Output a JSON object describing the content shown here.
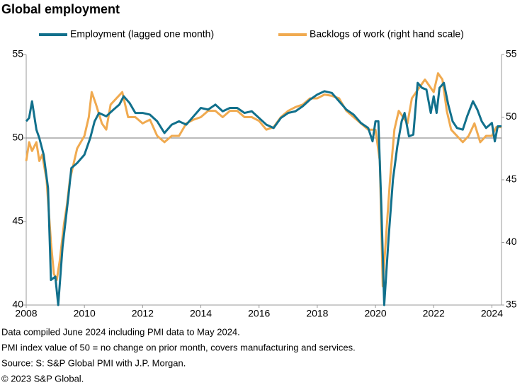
{
  "chart_data": {
    "type": "line",
    "title": "Global employment",
    "xlim": [
      2008,
      2024.33
    ],
    "xticks": [
      2008,
      2010,
      2012,
      2014,
      2016,
      2018,
      2020,
      2022,
      2024
    ],
    "ylim": [
      40,
      55
    ],
    "yticks": [
      40,
      45,
      50,
      55
    ],
    "y2lim": [
      35,
      55
    ],
    "y2ticks": [
      35,
      40,
      45,
      50,
      55
    ],
    "hline": 50,
    "series": [
      {
        "name": "Employment (lagged one month)",
        "color": "#11708c",
        "x": [
          2008.0,
          2008.1,
          2008.2,
          2008.35,
          2008.45,
          2008.6,
          2008.75,
          2008.85,
          2009.0,
          2009.1,
          2009.25,
          2009.45,
          2009.55,
          2009.75,
          2010.0,
          2010.2,
          2010.35,
          2010.5,
          2010.75,
          2011.0,
          2011.2,
          2011.35,
          2011.55,
          2011.75,
          2012.0,
          2012.25,
          2012.5,
          2012.75,
          2013.0,
          2013.25,
          2013.5,
          2013.75,
          2014.0,
          2014.25,
          2014.5,
          2014.75,
          2015.0,
          2015.25,
          2015.5,
          2015.75,
          2016.0,
          2016.25,
          2016.5,
          2016.75,
          2017.0,
          2017.25,
          2017.5,
          2017.75,
          2018.0,
          2018.25,
          2018.5,
          2018.75,
          2019.0,
          2019.25,
          2019.5,
          2019.75,
          2019.9,
          2020.0,
          2020.1,
          2020.2,
          2020.3,
          2020.45,
          2020.6,
          2020.75,
          2020.9,
          2021.0,
          2021.15,
          2021.3,
          2021.45,
          2021.6,
          2021.75,
          2021.9,
          2022.0,
          2022.1,
          2022.2,
          2022.35,
          2022.5,
          2022.65,
          2022.8,
          2023.0,
          2023.15,
          2023.35,
          2023.5,
          2023.65,
          2023.8,
          2024.0,
          2024.1,
          2024.2,
          2024.33
        ],
        "values": [
          51.0,
          51.2,
          52.2,
          50.5,
          50.0,
          49.0,
          47.0,
          41.5,
          41.7,
          40.0,
          43.5,
          46.5,
          48.2,
          48.5,
          49.0,
          50.0,
          51.0,
          51.5,
          51.3,
          51.7,
          52.0,
          52.5,
          52.1,
          51.5,
          51.5,
          51.4,
          51.0,
          50.3,
          50.8,
          51.0,
          50.8,
          51.3,
          51.8,
          51.7,
          52.0,
          51.6,
          51.8,
          51.8,
          51.5,
          51.6,
          51.2,
          50.8,
          50.6,
          51.2,
          51.5,
          51.6,
          51.9,
          52.3,
          52.6,
          52.8,
          52.7,
          52.2,
          51.7,
          51.4,
          50.9,
          50.6,
          49.8,
          51.0,
          51.0,
          46.0,
          40.0,
          44.0,
          47.5,
          49.5,
          51.0,
          51.5,
          50.1,
          50.2,
          53.3,
          53.0,
          52.9,
          51.5,
          52.5,
          51.5,
          53.0,
          53.3,
          52.0,
          51.0,
          50.6,
          50.5,
          51.3,
          52.2,
          51.7,
          51.0,
          50.6,
          50.9,
          49.8,
          50.7,
          50.7
        ]
      },
      {
        "name": "Backlogs of work (right hand scale)",
        "color": "#f0aa50",
        "axis": "y2",
        "x": [
          2008.0,
          2008.1,
          2008.2,
          2008.35,
          2008.45,
          2008.55,
          2008.7,
          2008.85,
          2008.95,
          2009.05,
          2009.15,
          2009.3,
          2009.4,
          2009.5,
          2009.6,
          2009.75,
          2010.0,
          2010.15,
          2010.25,
          2010.4,
          2010.6,
          2010.75,
          2010.9,
          2011.1,
          2011.3,
          2011.5,
          2011.75,
          2012.0,
          2012.25,
          2012.5,
          2012.75,
          2013.0,
          2013.25,
          2013.5,
          2013.75,
          2014.0,
          2014.25,
          2014.5,
          2014.75,
          2015.0,
          2015.25,
          2015.5,
          2015.75,
          2016.0,
          2016.25,
          2016.5,
          2016.75,
          2017.0,
          2017.25,
          2017.5,
          2017.75,
          2018.0,
          2018.25,
          2018.5,
          2018.75,
          2019.0,
          2019.25,
          2019.5,
          2019.75,
          2020.0,
          2020.15,
          2020.25,
          2020.35,
          2020.5,
          2020.65,
          2020.8,
          2020.95,
          2021.1,
          2021.25,
          2021.4,
          2021.55,
          2021.7,
          2021.85,
          2022.0,
          2022.15,
          2022.3,
          2022.45,
          2022.6,
          2022.8,
          2023.0,
          2023.2,
          2023.4,
          2023.6,
          2023.8,
          2024.0,
          2024.15,
          2024.33
        ],
        "values": [
          46.5,
          48.0,
          47.3,
          48.0,
          46.5,
          47.0,
          45.0,
          40.0,
          37.5,
          37.0,
          38.5,
          41.5,
          43.0,
          45.0,
          46.0,
          47.5,
          48.5,
          50.0,
          52.0,
          51.0,
          49.5,
          49.0,
          51.0,
          51.5,
          52.0,
          50.0,
          50.0,
          49.5,
          49.8,
          48.5,
          48.0,
          48.5,
          48.5,
          49.5,
          49.8,
          50.0,
          50.5,
          50.5,
          50.0,
          50.5,
          50.5,
          50.0,
          50.0,
          49.7,
          49.0,
          49.2,
          50.0,
          50.5,
          50.8,
          51.0,
          51.5,
          51.5,
          51.8,
          51.7,
          51.5,
          50.5,
          50.0,
          49.5,
          49.0,
          49.0,
          46.5,
          36.5,
          40.0,
          45.0,
          49.0,
          50.5,
          50.0,
          49.5,
          51.5,
          52.0,
          52.5,
          53.0,
          52.5,
          52.0,
          53.5,
          53.0,
          50.5,
          49.0,
          48.5,
          48.0,
          48.5,
          49.5,
          48.0,
          48.5,
          48.5,
          49.2,
          49.2
        ]
      }
    ],
    "notes": [
      "Data compiled June 2024 including PMI data to May 2024.",
      "PMI index value of 50 = no change on prior month, covers manufacturing and services.",
      "Source: S: S&P Global PMI with J.P. Morgan.",
      "© 2023 S&P Global."
    ]
  }
}
